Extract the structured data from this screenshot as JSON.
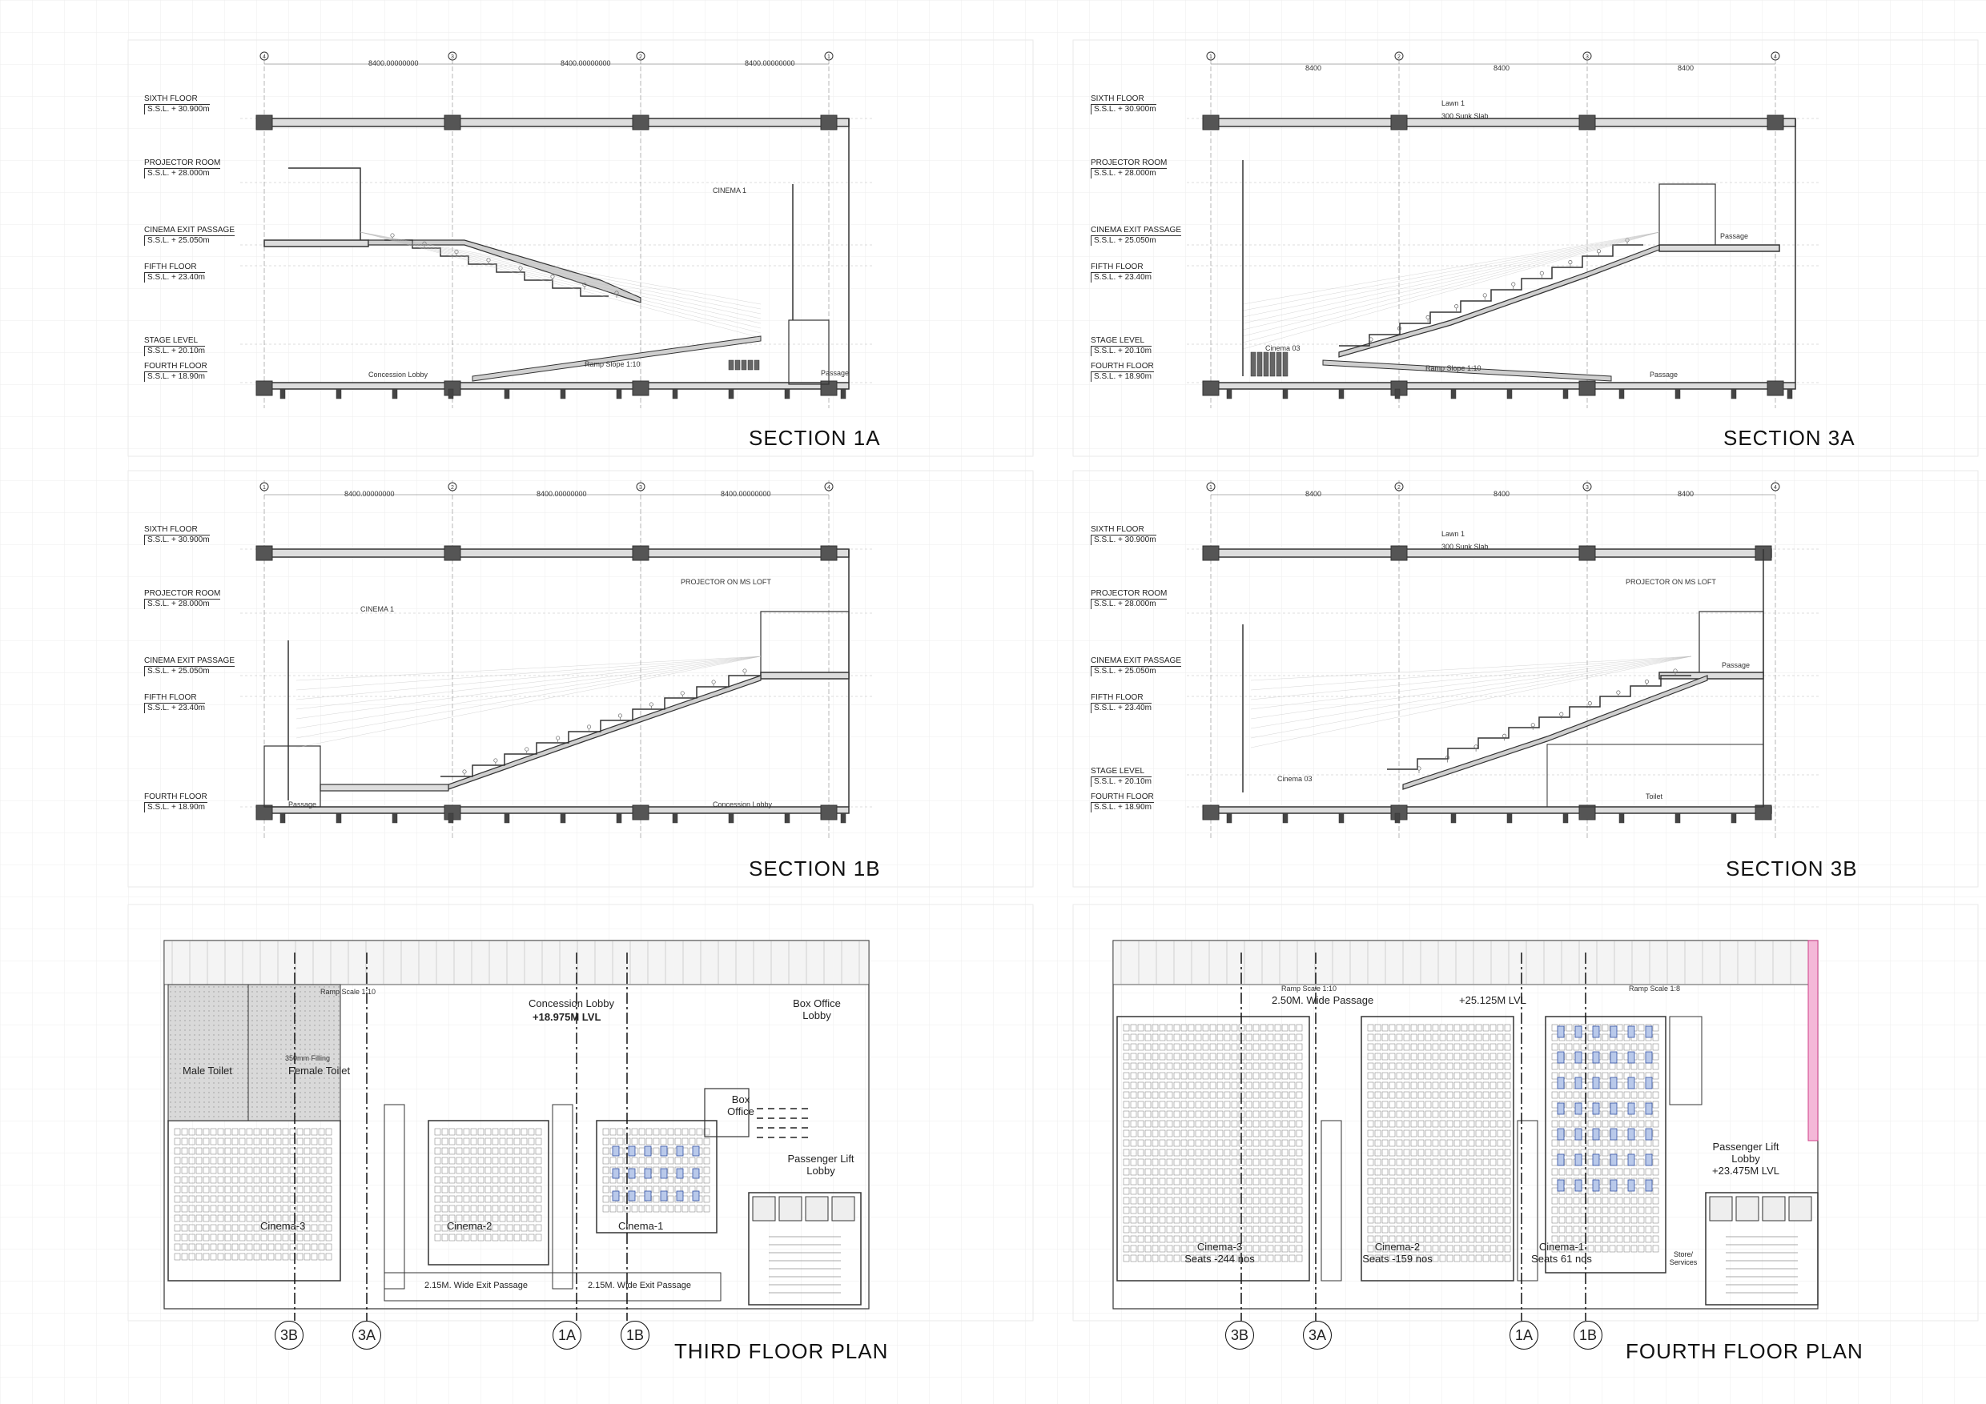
{
  "sections": [
    {
      "id": "1a",
      "title": "SECTION 1A",
      "levels": [
        {
          "name": "SIXTH FLOOR",
          "value": "S.S.L. + 30.900m"
        },
        {
          "name": "PROJECTOR ROOM",
          "value": "S.S.L. + 28.000m"
        },
        {
          "name": "CINEMA EXIT PASSAGE",
          "value": "S.S.L. + 25.050m"
        },
        {
          "name": "FIFTH FLOOR",
          "value": "S.S.L. + 23.40m"
        },
        {
          "name": "STAGE LEVEL",
          "value": "S.S.L. + 20.10m"
        },
        {
          "name": "FOURTH FLOOR",
          "value": "S.S.L. + 18.90m"
        }
      ],
      "grid": [
        "4",
        "3",
        "2",
        "1"
      ],
      "dims": [
        "8400.00000000",
        "8400.00000000",
        "8400.00000000"
      ],
      "labels": [
        "CINEMA 1",
        "Concession Lobby",
        "Ramp Slope 1:10",
        "Passage"
      ]
    },
    {
      "id": "3a",
      "title": "SECTION 3A",
      "levels": [
        {
          "name": "SIXTH FLOOR",
          "value": "S.S.L. + 30.900m"
        },
        {
          "name": "PROJECTOR ROOM",
          "value": "S.S.L. + 28.000m"
        },
        {
          "name": "CINEMA EXIT PASSAGE",
          "value": "S.S.L. + 25.050m"
        },
        {
          "name": "FIFTH FLOOR",
          "value": "S.S.L. + 23.40m"
        },
        {
          "name": "STAGE LEVEL",
          "value": "S.S.L. + 20.10m"
        },
        {
          "name": "FOURTH FLOOR",
          "value": "S.S.L. + 18.90m"
        }
      ],
      "grid": [
        "1",
        "2",
        "3",
        "4"
      ],
      "dims": [
        "8400",
        "8400",
        "8400"
      ],
      "labels": [
        "Lawn 1",
        "300 Sunk Slab",
        "Cinema 03",
        "Ramp Slope 1:10",
        "Passage",
        "Passage"
      ]
    },
    {
      "id": "1b",
      "title": "SECTION 1B",
      "levels": [
        {
          "name": "SIXTH FLOOR",
          "value": "S.S.L. + 30.900m"
        },
        {
          "name": "PROJECTOR ROOM",
          "value": "S.S.L. + 28.000m"
        },
        {
          "name": "CINEMA EXIT PASSAGE",
          "value": "S.S.L. + 25.050m"
        },
        {
          "name": "FIFTH FLOOR",
          "value": "S.S.L. + 23.40m"
        },
        {
          "name": "FOURTH FLOOR",
          "value": "S.S.L. + 18.90m"
        }
      ],
      "grid": [
        "1",
        "2",
        "3",
        "4"
      ],
      "dims": [
        "8400.00000000",
        "8400.00000000",
        "8400.00000000"
      ],
      "labels": [
        "CINEMA 1",
        "PROJECTOR ON MS LOFT",
        "Passage",
        "Concession Lobby"
      ]
    },
    {
      "id": "3b",
      "title": "SECTION 3B",
      "levels": [
        {
          "name": "SIXTH FLOOR",
          "value": "S.S.L. + 30.900m"
        },
        {
          "name": "PROJECTOR ROOM",
          "value": "S.S.L. + 28.000m"
        },
        {
          "name": "CINEMA EXIT PASSAGE",
          "value": "S.S.L. + 25.050m"
        },
        {
          "name": "FIFTH FLOOR",
          "value": "S.S.L. + 23.40m"
        },
        {
          "name": "STAGE LEVEL",
          "value": "S.S.L. + 20.10m"
        },
        {
          "name": "FOURTH FLOOR",
          "value": "S.S.L. + 18.90m"
        }
      ],
      "grid": [
        "1",
        "2",
        "3",
        "4"
      ],
      "dims": [
        "8400",
        "8400",
        "8400"
      ],
      "labels": [
        "Lawn 1",
        "300 Sunk Slab",
        "PROJECTOR ON MS LOFT",
        "Passage",
        "Cinema 03",
        "Toilet"
      ]
    }
  ],
  "plans": [
    {
      "id": "third",
      "title": "THIRD FLOOR PLAN",
      "rooms": [
        "Male Toilet",
        "Female Toilet",
        "Cinema-3",
        "Cinema-2",
        "Cinema-1",
        "Box Office",
        "Passenger Lift Lobby",
        "Box Office Lobby"
      ],
      "lobby": "Concession Lobby",
      "lobby_lvl": "+18.975M LVL",
      "passages": [
        "2.15M. Wide Exit Passage",
        "2.15M. Wide Exit Passage"
      ],
      "ramp": "Ramp Scale 1:10",
      "filling": "350mm Filling",
      "markers": [
        "3B",
        "3A",
        "1A",
        "1B"
      ]
    },
    {
      "id": "fourth",
      "title": "FOURTH FLOOR PLAN",
      "rooms": [
        {
          "name": "Cinema-3",
          "seats": "Seats -244 nos"
        },
        {
          "name": "Cinema-2",
          "seats": "Seats -159 nos"
        },
        {
          "name": "Cinema-1",
          "seats": "Seats 61 nos"
        }
      ],
      "passage": "2.50M. Wide Passage",
      "lvl": "+25.125M LVL",
      "lift": "Passenger Lift Lobby",
      "lift_lvl": "+23.475M LVL",
      "store": "Store/ Services",
      "ramp": "Ramp Scale 1:10",
      "ramp2": "Ramp Scale 1:8",
      "markers": [
        "3B",
        "3A",
        "1A",
        "1B"
      ]
    }
  ]
}
